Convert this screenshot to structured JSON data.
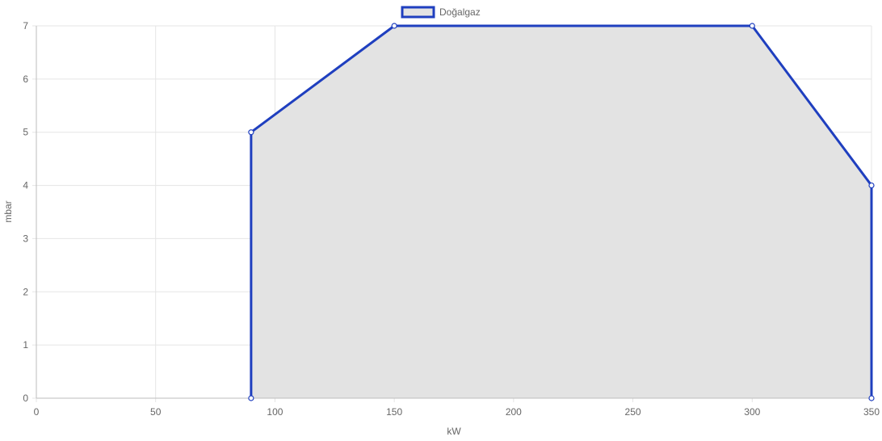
{
  "chart_data": {
    "type": "area",
    "xlabel": "kW",
    "ylabel": "mbar",
    "xlim": [
      0,
      350
    ],
    "ylim": [
      0,
      7
    ],
    "x_ticks": [
      "0",
      "50",
      "100",
      "150",
      "200",
      "250",
      "300",
      "350"
    ],
    "y_ticks": [
      "0",
      "1",
      "2",
      "3",
      "4",
      "5",
      "6",
      "7"
    ],
    "grid": true,
    "legend_position": "top-center",
    "series": [
      {
        "name": "Doğalgaz",
        "points": [
          {
            "x": 90,
            "y": 0
          },
          {
            "x": 90,
            "y": 5
          },
          {
            "x": 150,
            "y": 7
          },
          {
            "x": 300,
            "y": 7
          },
          {
            "x": 350,
            "y": 4
          },
          {
            "x": 350,
            "y": 0
          }
        ],
        "line_color": "#1f3fbf",
        "fill_color": "#e3e3e3"
      }
    ]
  }
}
